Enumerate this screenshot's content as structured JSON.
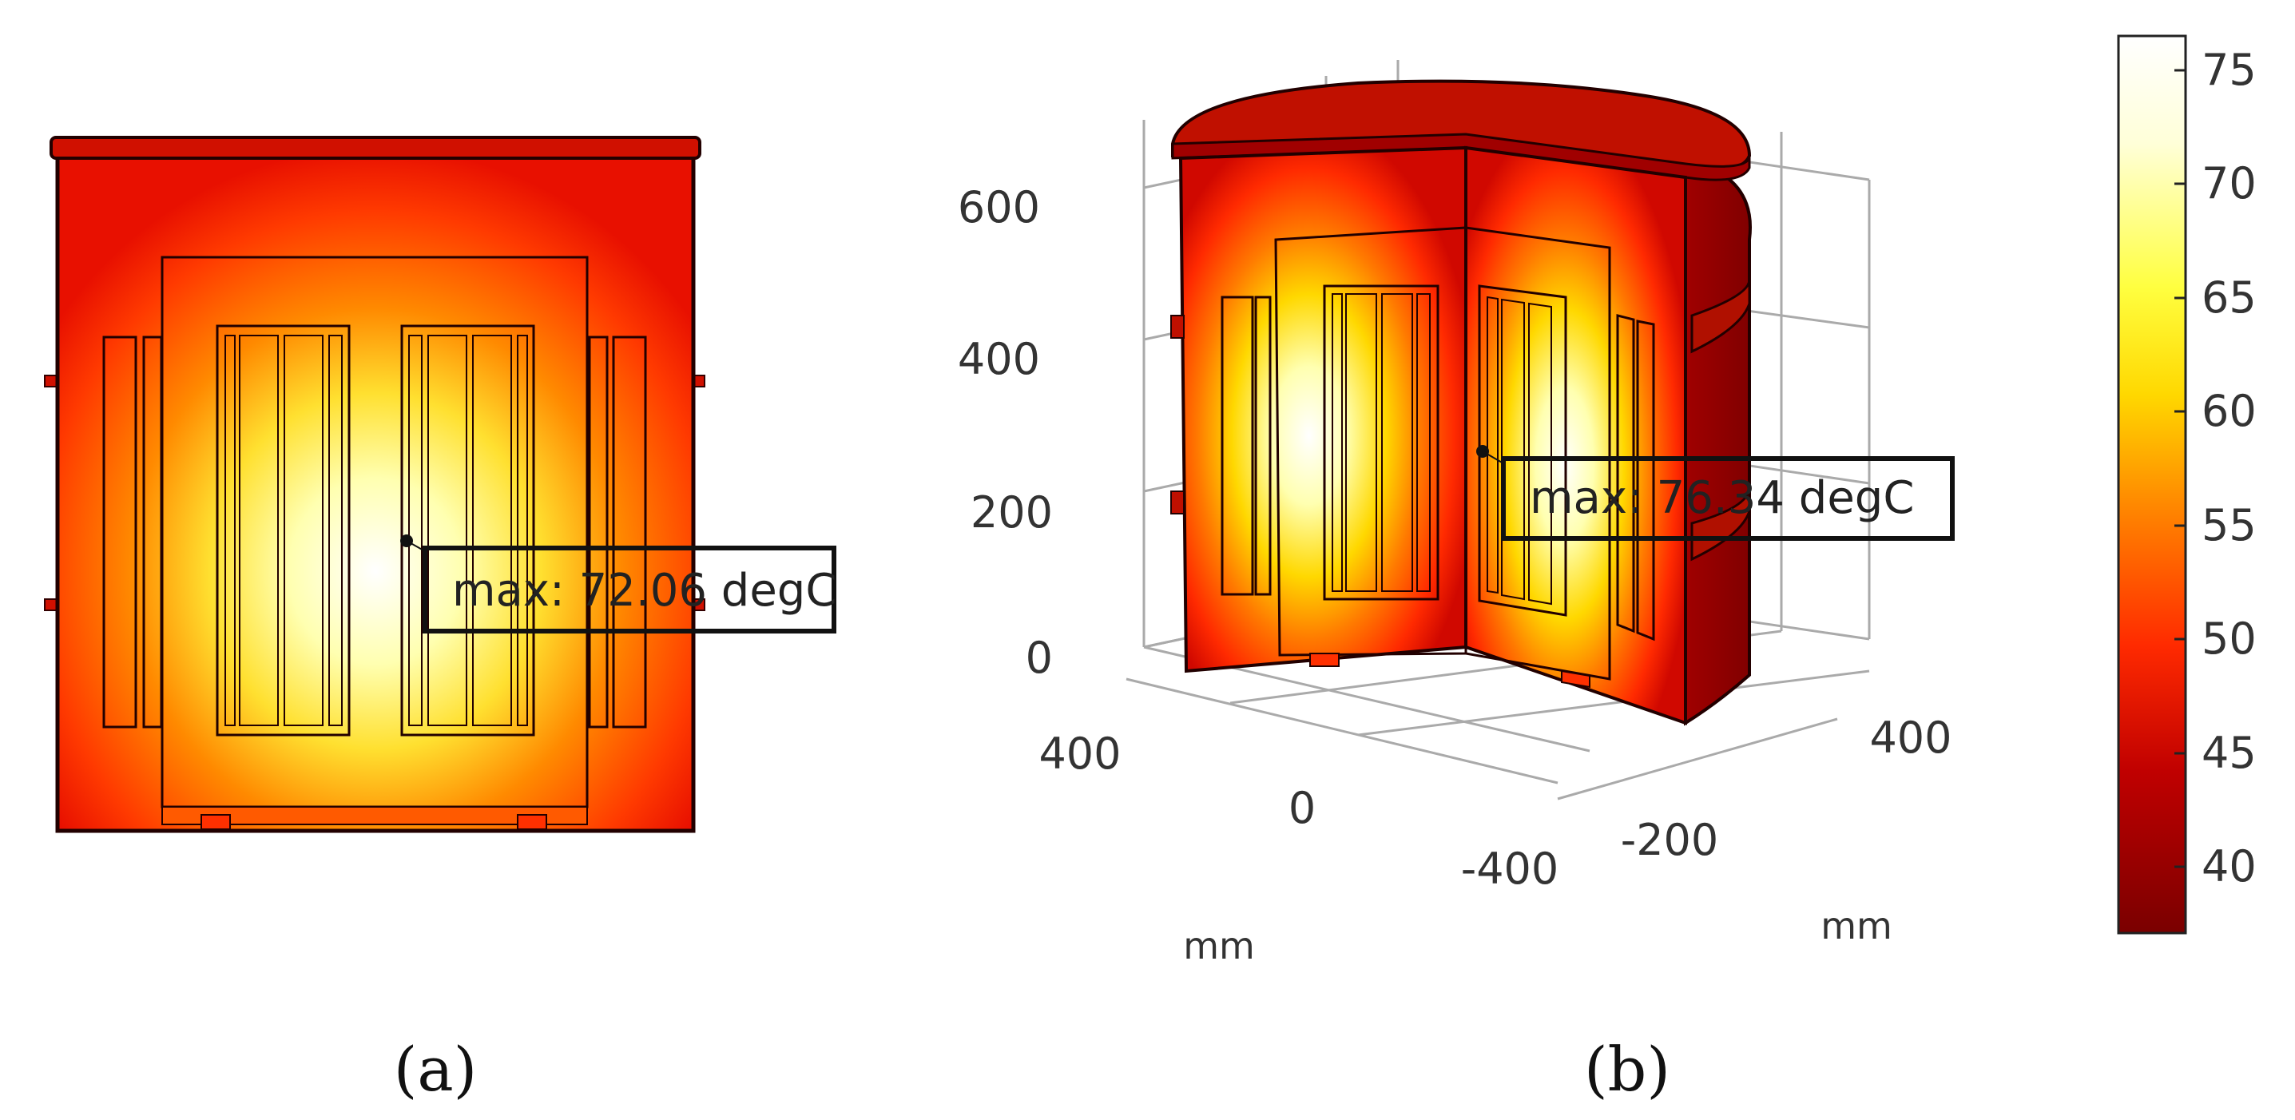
{
  "panel_a": {
    "caption": "(a)",
    "annotation": "max: 72.06 degC"
  },
  "panel_b": {
    "caption": "(b)",
    "annotation": "max: 76.34 degC",
    "z_ticks": [
      "600",
      "400",
      "200",
      "0"
    ],
    "x_ticks": [
      "400",
      "0",
      "-400"
    ],
    "y_ticks": [
      "400",
      "-200"
    ],
    "x_unit": "mm",
    "y_unit": "mm"
  },
  "colorbar": {
    "ticks": [
      "75",
      "70",
      "65",
      "60",
      "55",
      "50",
      "45",
      "40"
    ],
    "colormap": [
      "#7a0000",
      "#c00000",
      "#ff2a00",
      "#ff8a00",
      "#ffd800",
      "#ffff40",
      "#ffffd8",
      "#ffffff"
    ]
  }
}
